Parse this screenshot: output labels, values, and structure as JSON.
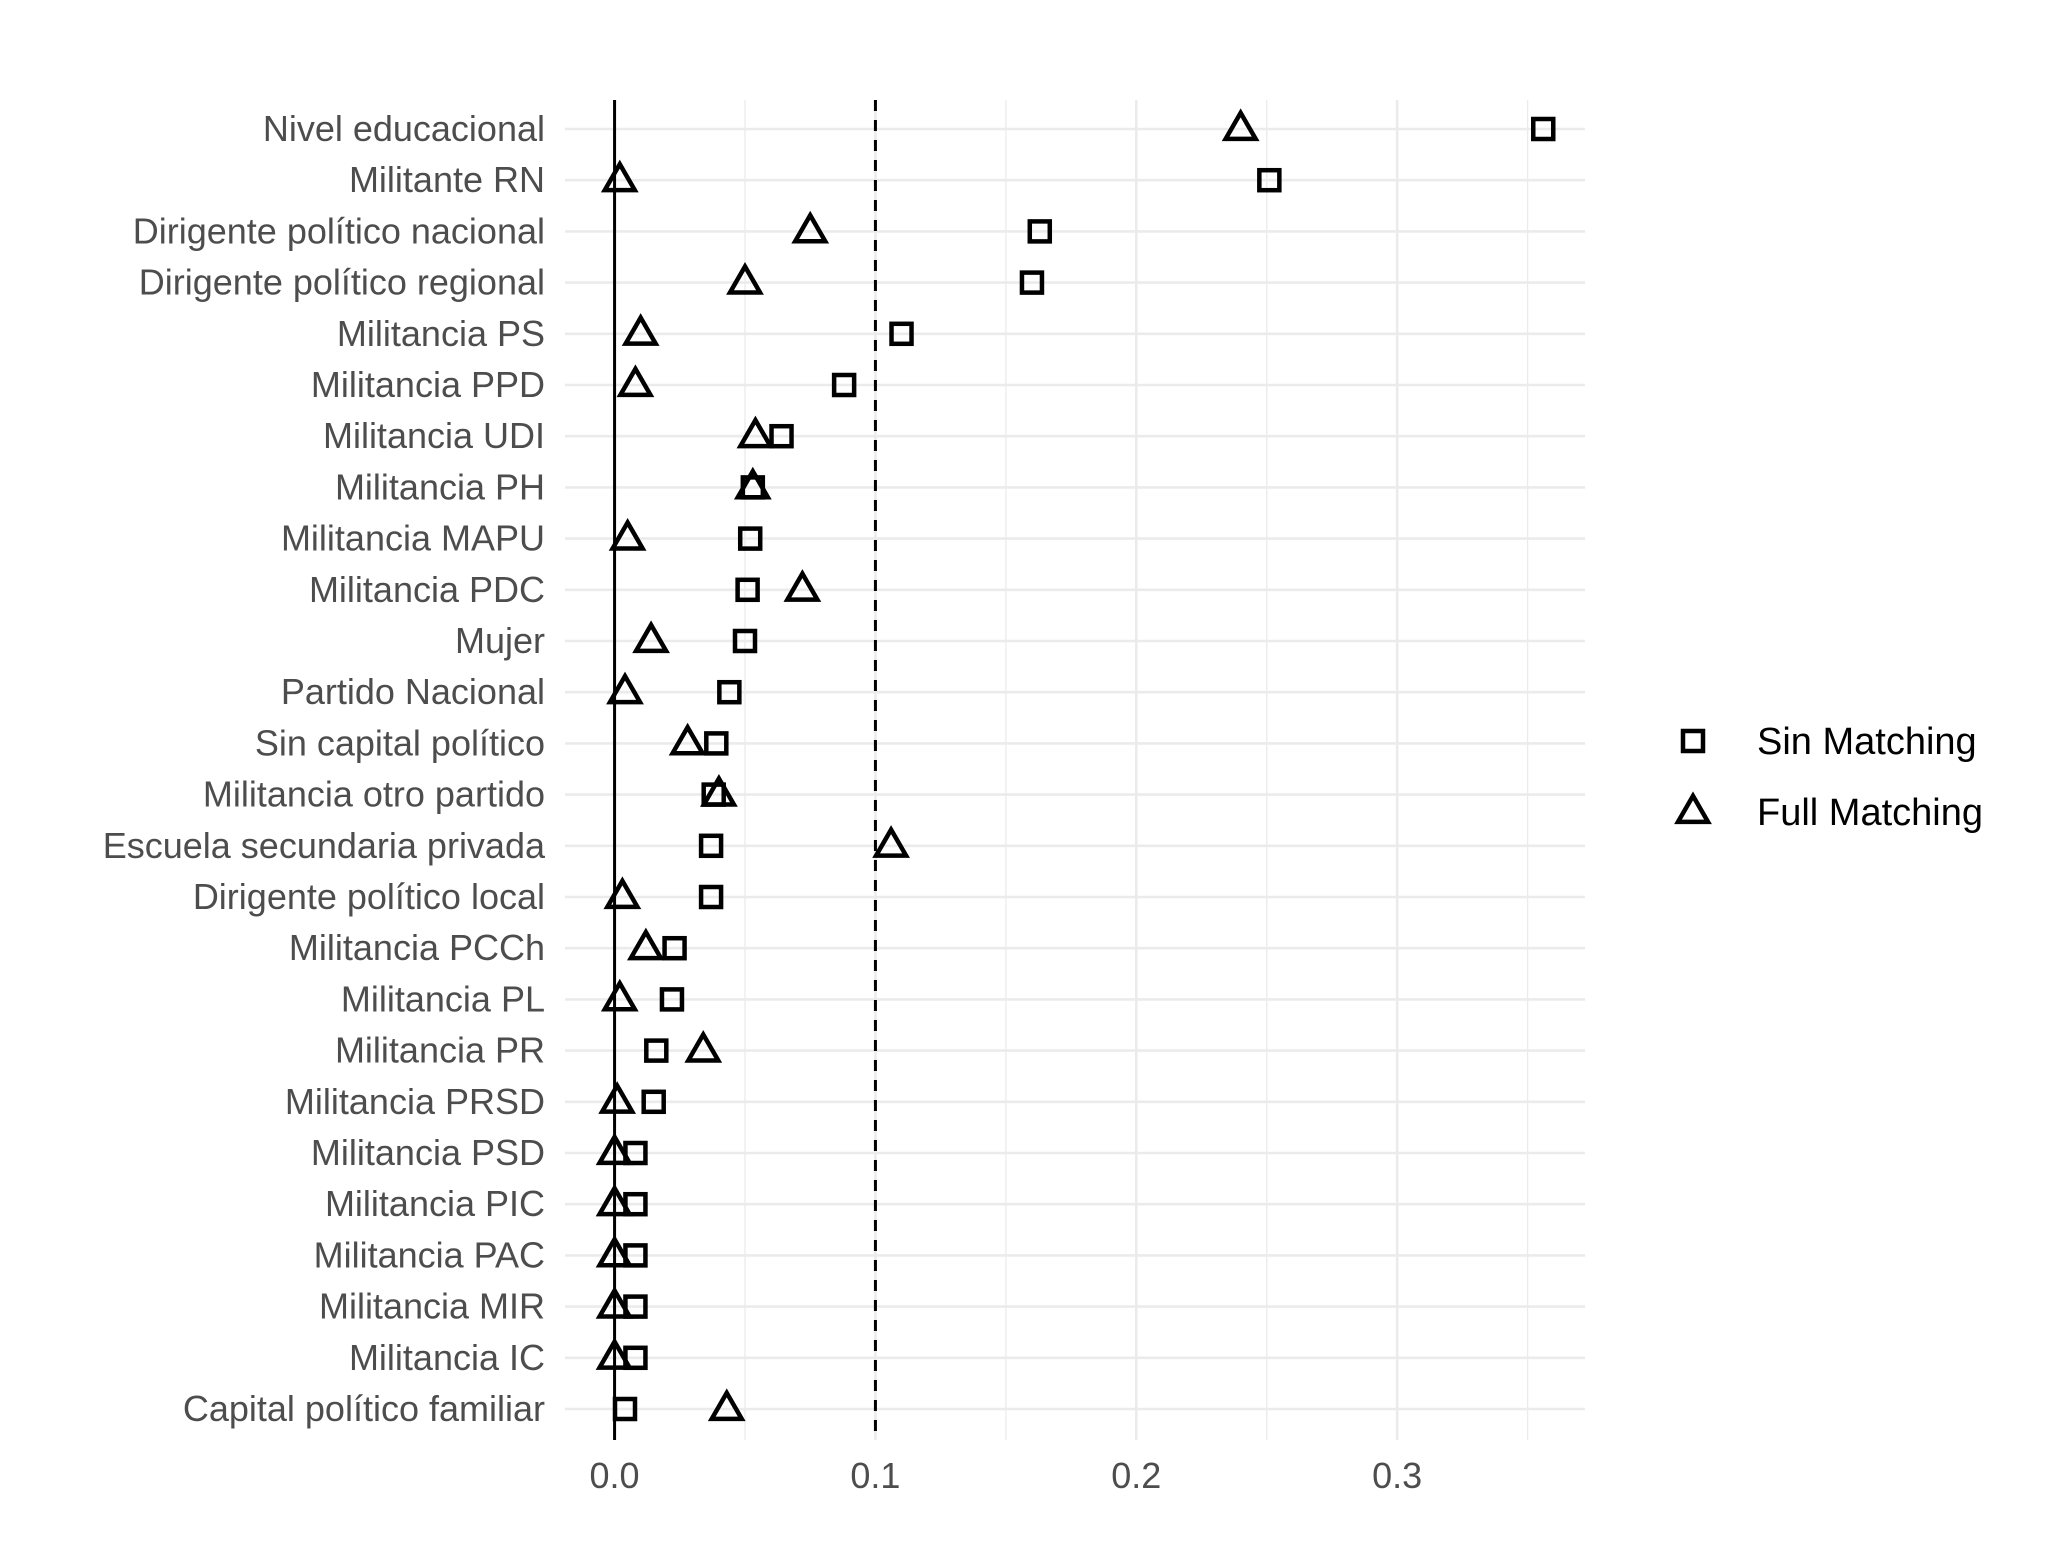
{
  "chart_data": {
    "type": "scatter",
    "title": "",
    "xlabel": "",
    "ylabel": "",
    "xlim": [
      -0.019,
      0.372
    ],
    "x_ticks": [
      0.0,
      0.1,
      0.2,
      0.3
    ],
    "x_tick_labels": [
      "0.0",
      "0.1",
      "0.2",
      "0.3"
    ],
    "reference_lines": [
      {
        "x": 0.0,
        "style": "solid"
      },
      {
        "x": 0.1,
        "style": "dashed"
      }
    ],
    "grid": true,
    "legend_position": "right",
    "categories": [
      "Nivel educacional",
      "Militante RN",
      "Dirigente político nacional",
      "Dirigente político regional",
      "Militancia PS",
      "Militancia PPD",
      "Militancia UDI",
      "Militancia PH",
      "Militancia MAPU",
      "Militancia PDC",
      "Mujer",
      "Partido Nacional",
      "Sin capital político",
      "Militancia otro partido",
      "Escuela secundaria privada",
      "Dirigente político local",
      "Militancia PCCh",
      "Militancia PL",
      "Militancia PR",
      "Militancia PRSD",
      "Militancia PSD",
      "Militancia PIC",
      "Militancia PAC",
      "Militancia MIR",
      "Militancia IC",
      "Capital político familiar"
    ],
    "series": [
      {
        "name": "Sin Matching",
        "marker": "square",
        "values": [
          0.356,
          0.251,
          0.163,
          0.16,
          0.11,
          0.088,
          0.064,
          0.053,
          0.052,
          0.051,
          0.05,
          0.044,
          0.039,
          0.038,
          0.037,
          0.037,
          0.023,
          0.022,
          0.016,
          0.015,
          0.008,
          0.008,
          0.008,
          0.008,
          0.008,
          0.004
        ]
      },
      {
        "name": "Full Matching",
        "marker": "triangle",
        "values": [
          0.24,
          0.002,
          0.075,
          0.05,
          0.01,
          0.008,
          0.054,
          0.053,
          0.005,
          0.072,
          0.014,
          0.004,
          0.028,
          0.04,
          0.106,
          0.003,
          0.012,
          0.002,
          0.034,
          0.001,
          0.0,
          0.0,
          0.0,
          0.0,
          0.0,
          0.043
        ]
      }
    ]
  }
}
